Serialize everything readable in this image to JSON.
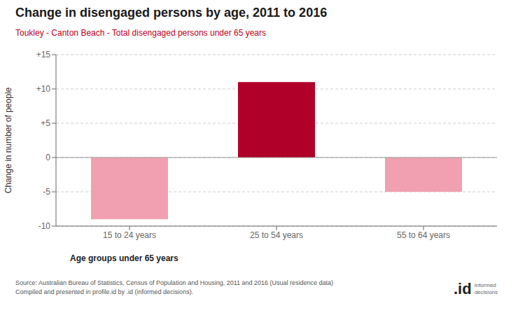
{
  "chart_data": {
    "type": "bar",
    "title": "Change in disengaged persons by age, 2011 to 2016",
    "subtitle": "Toukley - Canton Beach - Total disengaged persons under 65 years",
    "categories": [
      "15 to 24 years",
      "25 to 54 years",
      "55 to 64 years"
    ],
    "values": [
      -9,
      11,
      -5
    ],
    "colors": [
      "#f0a0b0",
      "#b0002a",
      "#f0a0b0"
    ],
    "xlabel": "Age groups under 65 years",
    "ylabel": "Change in number of people",
    "ylim": [
      -10,
      15
    ],
    "yticks": [
      -10,
      -5,
      0,
      {
        "value": 5,
        "label": "+5"
      },
      {
        "value": 10,
        "label": "+10"
      },
      {
        "value": 15,
        "label": "+15"
      }
    ],
    "grid": true,
    "annotations": [
      "Source: Australian Bureau of Statistics, Census of Population and Housing, 2011 and 2016 (Usual residence data)",
      "Compiled and presented in profile.id by .id (informed decisions).",
      ".id",
      "informed",
      "decisions"
    ]
  }
}
